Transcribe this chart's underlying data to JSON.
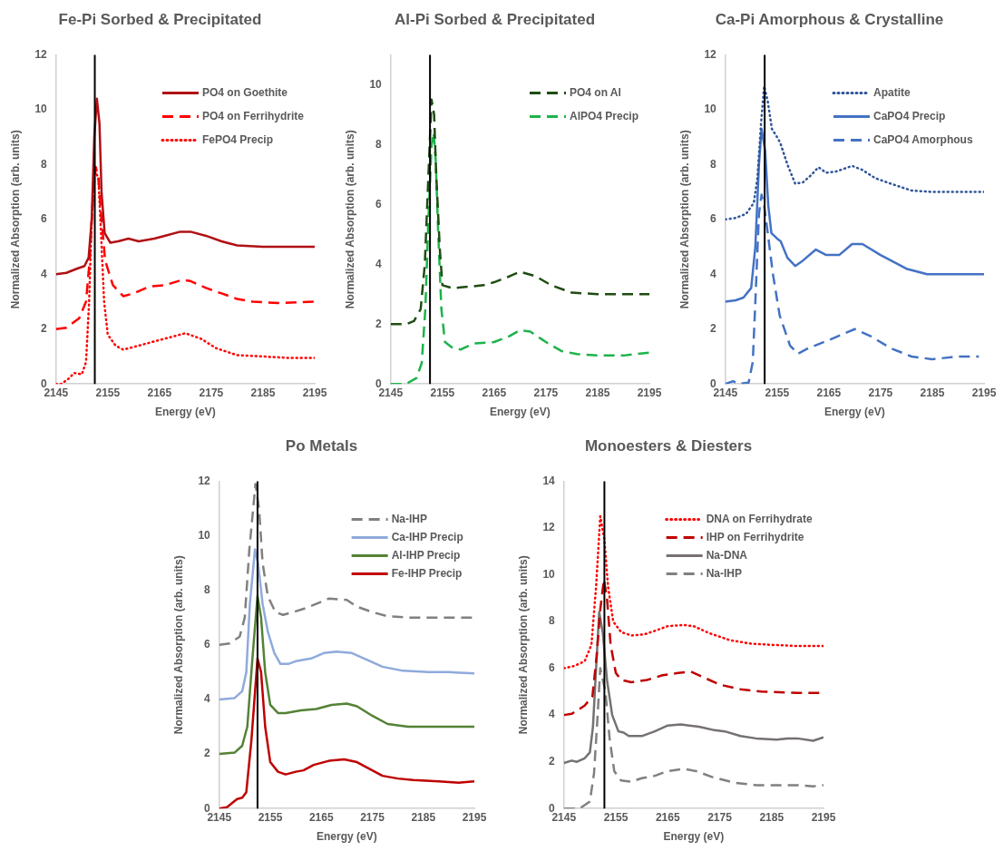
{
  "chart_data": [
    {
      "type": "line",
      "title": "Fe-Pi Sorbed & Precipitated",
      "xlabel": "Energy (eV)",
      "ylabel": "Normalized Absorption (arb. units)",
      "xlim": [
        2145,
        2195
      ],
      "xticks": [
        2145,
        2155,
        2165,
        2175,
        2185,
        2195
      ],
      "ylim": [
        0,
        12
      ],
      "yticks": [
        0,
        2,
        4,
        6,
        8,
        10,
        12
      ],
      "grid": false,
      "legend": "top right",
      "ref_lines": [
        {
          "axis": "x",
          "value": 2152.5,
          "color": "#000000"
        }
      ],
      "series": [
        {
          "name": "PO4 on Goethite",
          "color": "#b01015",
          "line_style": "solid",
          "x": [
            2145,
            2147,
            2149,
            2150.5,
            2151.3,
            2151.9,
            2152.4,
            2152.9,
            2153.4,
            2153.8,
            2154.4,
            2155.5,
            2157,
            2159,
            2161,
            2164,
            2166,
            2169,
            2171,
            2174,
            2177,
            2180,
            2185,
            2190,
            2195
          ],
          "values": [
            4.0,
            4.05,
            4.2,
            4.3,
            4.6,
            6,
            9,
            10.4,
            9.5,
            7,
            5.5,
            5.15,
            5.2,
            5.3,
            5.2,
            5.3,
            5.4,
            5.55,
            5.55,
            5.4,
            5.2,
            5.05,
            5.0,
            5.0,
            5.0
          ]
        },
        {
          "name": "PO4 on Ferrihydrite",
          "color": "#ff0000",
          "line_style": "dashed",
          "x": [
            2145,
            2147,
            2149.5,
            2150.8,
            2151.5,
            2152.2,
            2152.7,
            2153.2,
            2153.8,
            2154.5,
            2156,
            2158,
            2160,
            2163,
            2166,
            2169.5,
            2171,
            2174,
            2177,
            2180,
            2183,
            2188,
            2195
          ],
          "values": [
            2.0,
            2.05,
            2.4,
            3,
            4.5,
            7,
            7.9,
            7.5,
            6,
            4.5,
            3.6,
            3.2,
            3.3,
            3.55,
            3.6,
            3.8,
            3.75,
            3.5,
            3.3,
            3.1,
            3.0,
            2.95,
            3.0
          ]
        },
        {
          "name": "FePO4 Precip",
          "color": "#ff0000",
          "line_style": "dotted",
          "x": [
            2145,
            2146,
            2147.5,
            2148.5,
            2150,
            2150.8,
            2151.4,
            2151.9,
            2152.5,
            2153.2,
            2153.7,
            2154.3,
            2155,
            2156.5,
            2158,
            2161,
            2165,
            2169,
            2170,
            2173,
            2176,
            2180,
            2185,
            2190,
            2195
          ],
          "values": [
            0,
            0,
            0.2,
            0.4,
            0.35,
            0.8,
            3,
            6,
            7.8,
            7.5,
            5.5,
            3,
            1.8,
            1.4,
            1.25,
            1.4,
            1.6,
            1.8,
            1.85,
            1.65,
            1.3,
            1.05,
            1.0,
            0.95,
            0.95
          ]
        }
      ]
    },
    {
      "type": "line",
      "title": "Al-Pi Sorbed & Precipitated",
      "xlabel": "Energy (eV)",
      "ylabel": "Normalized Absorption (arb. units)",
      "xlim": [
        2145,
        2195
      ],
      "xticks": [
        2145,
        2155,
        2165,
        2175,
        2185,
        2195
      ],
      "ylim": [
        0,
        11
      ],
      "yticks": [
        0,
        2,
        4,
        6,
        8,
        10
      ],
      "grid": false,
      "legend": "top right",
      "ref_lines": [
        {
          "axis": "x",
          "value": 2152.6,
          "color": "#000000"
        }
      ],
      "series": [
        {
          "name": "PO4 on Al",
          "color": "#1e4d12",
          "line_style": "dashed",
          "x": [
            2145,
            2148,
            2149.5,
            2150.8,
            2151.6,
            2152.3,
            2152.9,
            2153.4,
            2153.8,
            2154.5,
            2155,
            2157,
            2160,
            2163,
            2165,
            2168,
            2170,
            2173,
            2176,
            2180,
            2185,
            2195
          ],
          "values": [
            2.0,
            2.0,
            2.1,
            2.5,
            4,
            7,
            9.5,
            9,
            7,
            4.5,
            3.3,
            3.2,
            3.25,
            3.3,
            3.4,
            3.6,
            3.75,
            3.6,
            3.3,
            3.05,
            3.0,
            3.0
          ]
        },
        {
          "name": "AlPO4 Precip",
          "color": "#1db34a",
          "line_style": "dashed",
          "x": [
            2145,
            2148,
            2150,
            2151,
            2151.7,
            2152.3,
            2152.9,
            2153.3,
            2153.7,
            2154.2,
            2154.8,
            2155.5,
            2157,
            2158.5,
            2161,
            2165,
            2168,
            2170,
            2172,
            2175,
            2178,
            2181,
            2185,
            2190,
            2195
          ],
          "values": [
            0,
            0,
            0.2,
            0.7,
            2.5,
            5.5,
            8,
            8.4,
            7.5,
            5,
            2.5,
            1.4,
            1.2,
            1.15,
            1.35,
            1.4,
            1.6,
            1.8,
            1.75,
            1.4,
            1.1,
            1.0,
            0.95,
            0.95,
            1.05
          ]
        }
      ]
    },
    {
      "type": "line",
      "title": "Ca-Pi Amorphous & Crystalline",
      "xlabel": "Energy (eV)",
      "ylabel": "Normalized Absorption (arb. units)",
      "xlim": [
        2145,
        2195
      ],
      "xticks": [
        2145,
        2155,
        2165,
        2175,
        2185,
        2195
      ],
      "ylim": [
        0,
        12
      ],
      "yticks": [
        0,
        2,
        4,
        6,
        8,
        10,
        12
      ],
      "grid": false,
      "legend": "top right",
      "ref_lines": [
        {
          "axis": "x",
          "value": 2152.6,
          "color": "#000000"
        }
      ],
      "series": [
        {
          "name": "Apatite",
          "color": "#2f5597",
          "line_style": "dotted",
          "x": [
            2145,
            2147,
            2149,
            2150.5,
            2151.2,
            2151.9,
            2152.5,
            2153.2,
            2154,
            2155,
            2155.6,
            2157,
            2158.5,
            2160,
            2161.5,
            2163,
            2164.5,
            2166.5,
            2169.5,
            2171.5,
            2174,
            2177,
            2181,
            2185,
            2190,
            2195
          ],
          "values": [
            6.0,
            6.05,
            6.2,
            6.6,
            7.5,
            9.5,
            10.85,
            10.3,
            9.3,
            9.0,
            8.8,
            8,
            7.3,
            7.35,
            7.6,
            7.9,
            7.7,
            7.75,
            7.95,
            7.8,
            7.5,
            7.3,
            7.05,
            7.0,
            7.0,
            7.0
          ]
        },
        {
          "name": "CaPO4 Precip",
          "color": "#4472c4",
          "line_style": "solid",
          "x": [
            2145,
            2147,
            2148.5,
            2150,
            2150.8,
            2151.5,
            2152,
            2152.7,
            2153.3,
            2153.9,
            2155,
            2155.7,
            2157,
            2158.5,
            2160,
            2162.5,
            2164.5,
            2167,
            2169.5,
            2171.5,
            2175,
            2177,
            2180,
            2184,
            2190,
            2195
          ],
          "values": [
            3.0,
            3.05,
            3.15,
            3.5,
            5,
            8,
            9.3,
            8.5,
            6.5,
            5.5,
            5.3,
            5.2,
            4.6,
            4.3,
            4.5,
            4.9,
            4.7,
            4.7,
            5.1,
            5.1,
            4.7,
            4.5,
            4.2,
            4.0,
            4.0,
            4.0
          ]
        },
        {
          "name": "CaPO4 Amorphous",
          "color": "#4472c4",
          "line_style": "dashed",
          "x": [
            2145,
            2146.5,
            2147.5,
            2149.5,
            2150.3,
            2150.8,
            2151.5,
            2152,
            2152.5,
            2153.2,
            2154.2,
            2155.5,
            2157.5,
            2159,
            2161,
            2165,
            2167.5,
            2170,
            2173,
            2177,
            2181,
            2185,
            2190,
            2194
          ],
          "values": [
            0,
            0.1,
            0,
            0.05,
            0.8,
            3,
            6.2,
            6.9,
            6.5,
            5.5,
            4,
            2.5,
            1.4,
            1.1,
            1.3,
            1.6,
            1.8,
            2.0,
            1.75,
            1.3,
            1.0,
            0.9,
            1.0,
            1.0
          ]
        }
      ]
    },
    {
      "type": "line",
      "title": "Po Metals",
      "xlabel": "Energy (eV)",
      "ylabel": "Normalized Absorption (arb. units)",
      "xlim": [
        2145,
        2195
      ],
      "xticks": [
        2145,
        2155,
        2165,
        2175,
        2185,
        2195
      ],
      "ylim": [
        0,
        12
      ],
      "yticks": [
        0,
        2,
        4,
        6,
        8,
        10,
        12
      ],
      "grid": false,
      "legend": "top right",
      "ref_lines": [
        {
          "axis": "x",
          "value": 2152.5,
          "color": "#000000"
        }
      ],
      "series": [
        {
          "name": "Na-IHP",
          "color": "#808080",
          "line_style": "dashed",
          "x": [
            2145,
            2147,
            2149,
            2150,
            2150.9,
            2152.1,
            2152.8,
            2153.5,
            2154.5,
            2156,
            2157.5,
            2159.5,
            2162,
            2164,
            2166.5,
            2170,
            2172,
            2175,
            2178,
            2182,
            2190,
            2195
          ],
          "values": [
            6.0,
            6.05,
            6.3,
            7,
            9.5,
            11.9,
            11,
            9,
            7.8,
            7.2,
            7.1,
            7.2,
            7.35,
            7.5,
            7.7,
            7.65,
            7.4,
            7.2,
            7.05,
            7.0,
            7.0,
            7.0
          ]
        },
        {
          "name": "Ca-IHP Precip",
          "color": "#8faadc",
          "line_style": "solid",
          "x": [
            2145,
            2148,
            2149.5,
            2150.3,
            2151,
            2152,
            2152.6,
            2153.5,
            2154.5,
            2155.8,
            2157,
            2158.5,
            2160,
            2163,
            2165.5,
            2168,
            2171,
            2174,
            2177,
            2181,
            2186,
            2190,
            2195
          ],
          "values": [
            4.0,
            4.05,
            4.3,
            5,
            7.5,
            9.5,
            9,
            7.5,
            6.5,
            5.7,
            5.3,
            5.3,
            5.4,
            5.5,
            5.7,
            5.75,
            5.7,
            5.45,
            5.2,
            5.05,
            5.0,
            5.0,
            4.95
          ]
        },
        {
          "name": "Al-IHP Precip",
          "color": "#548235",
          "line_style": "solid",
          "x": [
            2145,
            2148,
            2149.5,
            2150.5,
            2151.5,
            2152.5,
            2153.2,
            2154,
            2155,
            2156.5,
            2158,
            2161,
            2164,
            2167,
            2170,
            2172,
            2175,
            2178,
            2182,
            2186,
            2190,
            2195
          ],
          "values": [
            2.0,
            2.05,
            2.3,
            3,
            5.5,
            7.8,
            7,
            5,
            3.8,
            3.5,
            3.5,
            3.6,
            3.65,
            3.8,
            3.85,
            3.75,
            3.4,
            3.1,
            3.0,
            3.0,
            3.0,
            3.0
          ]
        },
        {
          "name": "Fe-IHP Precip",
          "color": "#c00000",
          "line_style": "solid",
          "x": [
            2145,
            2146.5,
            2148.5,
            2149.5,
            2150.3,
            2151.3,
            2152.5,
            2153.2,
            2154,
            2155,
            2156.5,
            2158,
            2160,
            2161.5,
            2163.5,
            2166.5,
            2169.5,
            2172,
            2174.5,
            2177,
            2180,
            2183,
            2188,
            2192,
            2195
          ],
          "values": [
            0,
            0.05,
            0.35,
            0.4,
            0.6,
            2.5,
            5.5,
            5,
            3,
            1.7,
            1.35,
            1.25,
            1.35,
            1.4,
            1.6,
            1.75,
            1.8,
            1.7,
            1.45,
            1.2,
            1.1,
            1.05,
            1.0,
            0.95,
            1.0
          ]
        }
      ]
    },
    {
      "type": "line",
      "title": "Monoesters & Diesters",
      "xlabel": "Energy (eV)",
      "ylabel": "Normalized Absorption (arb. units)",
      "xlim": [
        2145,
        2195
      ],
      "xticks": [
        2145,
        2155,
        2165,
        2175,
        2185,
        2195
      ],
      "ylim": [
        0,
        14
      ],
      "yticks": [
        0,
        2,
        4,
        6,
        8,
        10,
        12,
        14
      ],
      "grid": false,
      "legend": "top right",
      "ref_lines": [
        {
          "axis": "x",
          "value": 2152.8,
          "color": "#000000"
        }
      ],
      "series": [
        {
          "name": "DNA on Ferrihydrate",
          "color": "#ff0000",
          "line_style": "dotted",
          "x": [
            2145,
            2147,
            2149,
            2150.3,
            2151.2,
            2152,
            2152.8,
            2153.5,
            2154.5,
            2156,
            2158,
            2160.5,
            2162.5,
            2165,
            2168,
            2170,
            2173,
            2177,
            2181,
            2185,
            2190,
            2195
          ],
          "values": [
            6.0,
            6.1,
            6.3,
            7,
            9.5,
            12.5,
            11.5,
            9.5,
            8,
            7.55,
            7.4,
            7.45,
            7.6,
            7.8,
            7.85,
            7.8,
            7.5,
            7.2,
            7.05,
            7.0,
            6.95,
            6.95
          ]
        },
        {
          "name": "IHP on Ferrihydrite",
          "color": "#c00000",
          "line_style": "dashed",
          "x": [
            2145,
            2146.5,
            2149,
            2150.5,
            2151.3,
            2152,
            2152.7,
            2153.3,
            2154,
            2155,
            2156,
            2158,
            2161,
            2164,
            2167,
            2169.5,
            2172,
            2175,
            2179,
            2183,
            2190,
            2195
          ],
          "values": [
            4.0,
            4.05,
            4.4,
            4.8,
            6.5,
            8.5,
            9.8,
            9,
            7,
            5.8,
            5.5,
            5.4,
            5.5,
            5.7,
            5.8,
            5.85,
            5.6,
            5.3,
            5.1,
            5.0,
            4.95,
            4.95
          ]
        },
        {
          "name": "Na-DNA",
          "color": "#767171",
          "line_style": "solid",
          "x": [
            2145,
            2146.5,
            2147.5,
            2149,
            2150,
            2150.6,
            2151.2,
            2151.8,
            2152.5,
            2153.3,
            2154.3,
            2155.5,
            2156.5,
            2157.5,
            2160,
            2162.5,
            2165,
            2167.5,
            2171,
            2174,
            2176,
            2179,
            2182,
            2186,
            2188,
            2190,
            2193,
            2195
          ],
          "values": [
            1.95,
            2.05,
            2.0,
            2.15,
            2.4,
            3.5,
            6,
            8.4,
            7.5,
            5.5,
            4,
            3.3,
            3.25,
            3.1,
            3.1,
            3.3,
            3.55,
            3.6,
            3.5,
            3.35,
            3.3,
            3.1,
            3.0,
            2.95,
            3.0,
            3.0,
            2.9,
            3.05
          ]
        },
        {
          "name": "Na-IHP",
          "color": "#808080",
          "line_style": "dashed",
          "x": [
            2145,
            2148,
            2150,
            2150.8,
            2151.5,
            2152,
            2153,
            2153.8,
            2154.7,
            2156,
            2158,
            2160,
            2162.5,
            2165,
            2168,
            2170.5,
            2173.5,
            2178,
            2182,
            2186,
            2190,
            2193,
            2195
          ],
          "values": [
            0,
            0,
            0.3,
            1.5,
            4,
            6,
            5,
            3,
            1.6,
            1.2,
            1.15,
            1.3,
            1.4,
            1.6,
            1.7,
            1.6,
            1.35,
            1.1,
            1.0,
            1.0,
            1.0,
            0.95,
            1.0
          ]
        }
      ]
    }
  ]
}
